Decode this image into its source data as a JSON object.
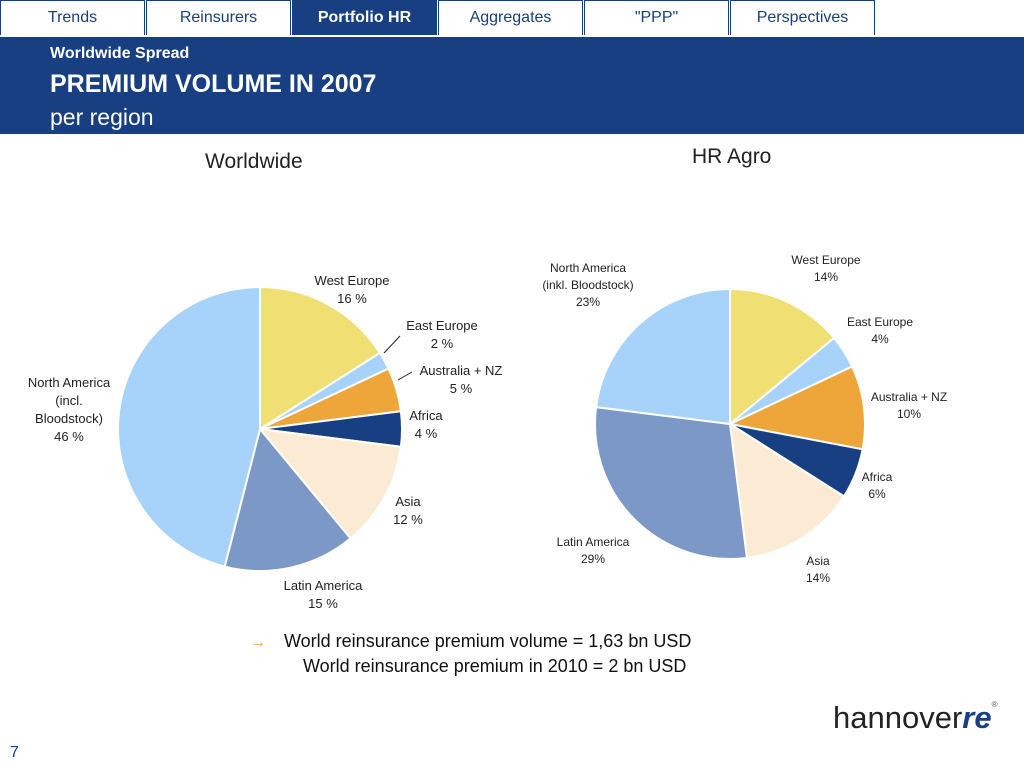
{
  "tabs": [
    {
      "label": "Trends",
      "active": false
    },
    {
      "label": "Reinsurers",
      "active": false
    },
    {
      "label": "Portfolio HR",
      "active": true
    },
    {
      "label": "Aggregates",
      "active": false
    },
    {
      "label": "\"PPP\"",
      "active": false
    },
    {
      "label": "Perspectives",
      "active": false
    }
  ],
  "header": {
    "sub": "Worldwide Spread",
    "title": "PREMIUM VOLUME IN 2007",
    "subtitle": "per region"
  },
  "chart_data": [
    {
      "type": "pie",
      "title": "Worldwide",
      "slices": [
        {
          "label": "West Europe",
          "lines": [
            "West Europe",
            "16 %"
          ],
          "value": 16,
          "color": "#f0df72"
        },
        {
          "label": "East Europe",
          "lines": [
            "East Europe",
            "2 %"
          ],
          "value": 2,
          "color": "#a7d3fb"
        },
        {
          "label": "Australia + NZ",
          "lines": [
            "Australia + NZ",
            "5 %"
          ],
          "value": 5,
          "color": "#eea63a"
        },
        {
          "label": "Africa",
          "lines": [
            "Africa",
            "4 %"
          ],
          "value": 4,
          "color": "#173f82"
        },
        {
          "label": "Asia",
          "lines": [
            "Asia",
            "12 %"
          ],
          "value": 12,
          "color": "#fbebd4"
        },
        {
          "label": "Latin America",
          "lines": [
            "Latin America",
            "15 %"
          ],
          "value": 15,
          "color": "#7b98c6"
        },
        {
          "label": "North America (incl. Bloodstock)",
          "lines": [
            "North America",
            "(incl.",
            "Bloodstock)",
            "46 %"
          ],
          "value": 46,
          "color": "#a7d3fb"
        }
      ]
    },
    {
      "type": "pie",
      "title": "HR Agro",
      "slices": [
        {
          "label": "West Europe",
          "lines": [
            "West Europe",
            "14%"
          ],
          "value": 14,
          "color": "#f0df72"
        },
        {
          "label": "East Europe",
          "lines": [
            "East Europe",
            "4%"
          ],
          "value": 4,
          "color": "#a7d3fb"
        },
        {
          "label": "Australia + NZ",
          "lines": [
            "Australia + NZ",
            "10%"
          ],
          "value": 10,
          "color": "#eea63a"
        },
        {
          "label": "Africa",
          "lines": [
            "Africa",
            "6%"
          ],
          "value": 6,
          "color": "#173f82"
        },
        {
          "label": "Asia",
          "lines": [
            "Asia",
            "14%"
          ],
          "value": 14,
          "color": "#fbebd4"
        },
        {
          "label": "Latin America",
          "lines": [
            "Latin America",
            "29%"
          ],
          "value": 29,
          "color": "#7b98c6"
        },
        {
          "label": "North America (inkl. Bloodstock)",
          "lines": [
            "North America",
            "(inkl. Bloodstock)",
            "23%"
          ],
          "value": 23,
          "color": "#a7d3fb"
        }
      ]
    }
  ],
  "notes": {
    "arrow_icon": "→",
    "line1": "World reinsurance premium volume = 1,63 bn USD",
    "line2": "World reinsurance premium in 2010 = 2 bn USD"
  },
  "logo": {
    "text": "hannover",
    "accent": "re",
    "reg": "®"
  },
  "page_number": "7"
}
